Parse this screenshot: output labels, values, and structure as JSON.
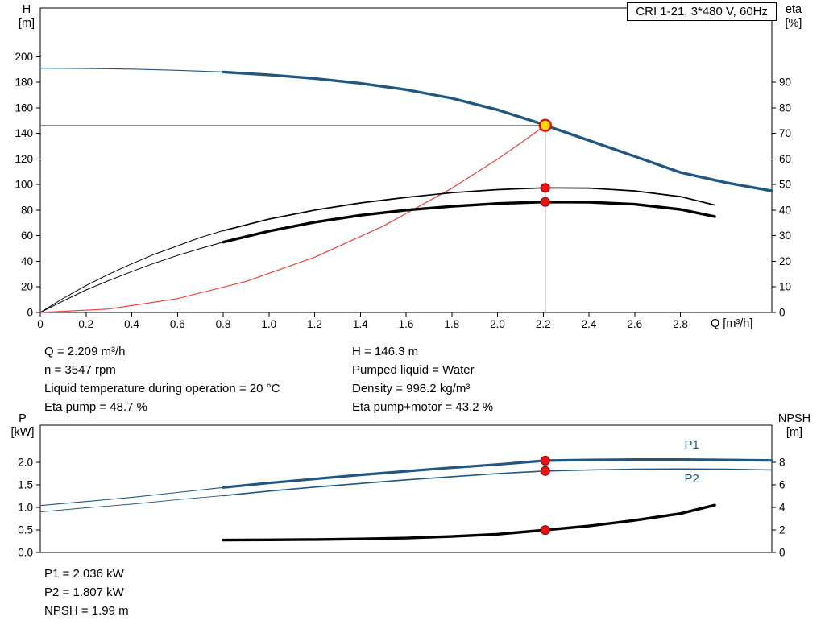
{
  "axis_labels": {
    "h": [
      "H",
      "[m]"
    ],
    "eta": [
      "eta",
      "[%]"
    ],
    "p": [
      "P",
      "[kW]"
    ],
    "npsh": [
      "NPSH",
      "[m]"
    ]
  },
  "annotations": {
    "duty_left": [
      "Q = 2.209 m³/h",
      "n = 3547 rpm",
      "Liquid temperature during operation = 20 °C",
      "Eta pump = 48.7 %"
    ],
    "duty_right": [
      "H = 146.3 m",
      "Pumped liquid = Water",
      "Density = 998.2 kg/m³",
      "Eta pump+motor = 43.2 %"
    ],
    "bottom": [
      "P1 = 2.036 kW",
      "P2 = 1.807 kW",
      "NPSH = 1.99 m"
    ]
  },
  "chart_data": [
    {
      "type": "line",
      "title": "CRI 1-21, 3*480 V, 60Hz",
      "xlabel": "Q [m³/h]",
      "ylabel": "H [m]",
      "ylabel_right": "eta [%]",
      "xlim": [
        0,
        3.2
      ],
      "ylim_left": [
        0,
        238
      ],
      "ylim_right": [
        0,
        119
      ],
      "xticks": [
        "0",
        "0.2",
        "0.4",
        "0.6",
        "0.8",
        "1.0",
        "1.2",
        "1.4",
        "1.6",
        "1.8",
        "2.0",
        "2.2",
        "2.4",
        "2.6",
        "2.8"
      ],
      "yticks_left": [
        "0",
        "20",
        "40",
        "60",
        "80",
        "100",
        "120",
        "140",
        "160",
        "180",
        "200"
      ],
      "yticks_right": [
        "0",
        "10",
        "20",
        "30",
        "40",
        "50",
        "60",
        "70",
        "80",
        "90"
      ],
      "grid": false,
      "duty": {
        "q": 2.209,
        "h": 146.3,
        "line_color": "#787878"
      },
      "series": [
        {
          "name": "pump-curve-lead",
          "axis": "left",
          "color": "#205781",
          "width": 1.2,
          "x": [
            0,
            0.2,
            0.4,
            0.6,
            0.8
          ],
          "y": [
            191,
            190.8,
            190.3,
            189.3,
            188
          ]
        },
        {
          "name": "pump-curve",
          "axis": "left",
          "color": "#205781",
          "width": 3.4,
          "x": [
            0.8,
            1.0,
            1.2,
            1.4,
            1.6,
            1.8,
            2.0,
            2.2,
            2.209,
            2.4,
            2.6,
            2.8,
            3.0,
            3.2
          ],
          "y": [
            188,
            185.8,
            183,
            179.2,
            174.2,
            167.5,
            158.5,
            147,
            146.3,
            134.5,
            122,
            109.5,
            101.5,
            95
          ]
        },
        {
          "name": "system-curve",
          "axis": "left",
          "color": "#e8423b",
          "width": 1.2,
          "x": [
            0,
            0.3,
            0.6,
            0.9,
            1.2,
            1.5,
            1.8,
            2.0,
            2.1,
            2.209
          ],
          "y": [
            0,
            2.7,
            10.8,
            24.3,
            43.2,
            67.5,
            97.1,
            119.9,
            132.2,
            146.3
          ]
        },
        {
          "name": "eta-pump-lead",
          "axis": "right",
          "color": "#000000",
          "width": 1,
          "x": [
            0,
            0.1,
            0.2,
            0.3,
            0.4,
            0.5,
            0.6,
            0.7,
            0.8
          ],
          "y": [
            0,
            5.5,
            10.5,
            15,
            19,
            22.8,
            26,
            29.3,
            32
          ]
        },
        {
          "name": "eta-pump-curve",
          "axis": "right",
          "color": "#000000",
          "width": 1.7,
          "x": [
            0.8,
            1.0,
            1.2,
            1.4,
            1.6,
            1.8,
            2.0,
            2.2,
            2.4,
            2.6,
            2.8,
            2.95
          ],
          "y": [
            32,
            36.5,
            40,
            42.8,
            45,
            46.8,
            48,
            48.7,
            48.6,
            47.5,
            45.3,
            42
          ]
        },
        {
          "name": "eta-pump-motor-lead",
          "axis": "right",
          "color": "#000000",
          "width": 1,
          "x": [
            0,
            0.1,
            0.2,
            0.3,
            0.4,
            0.5,
            0.6,
            0.7,
            0.8
          ],
          "y": [
            0,
            4.5,
            8.8,
            12.5,
            16,
            19.3,
            22.3,
            25,
            27.5
          ]
        },
        {
          "name": "eta-pump-motor-curve",
          "axis": "right",
          "color": "#000000",
          "width": 3.4,
          "x": [
            0.8,
            1.0,
            1.2,
            1.4,
            1.6,
            1.8,
            2.0,
            2.2,
            2.4,
            2.6,
            2.8,
            2.95
          ],
          "y": [
            27.5,
            31.8,
            35.3,
            38,
            40,
            41.5,
            42.6,
            43.2,
            43.1,
            42.3,
            40.3,
            37.5
          ]
        }
      ],
      "labels": [],
      "markers": [
        {
          "name": "eta-pump-point",
          "x": 2.209,
          "y": 48.7,
          "axis": "right",
          "r": 5.5,
          "fill": "#ee1111",
          "stroke": "#8b0000",
          "sw": 1
        },
        {
          "name": "eta-pump-motor-point",
          "x": 2.209,
          "y": 43.2,
          "axis": "right",
          "r": 5.5,
          "fill": "#ee1111",
          "stroke": "#8b0000",
          "sw": 1
        },
        {
          "name": "duty-point",
          "x": 2.209,
          "y": 146.3,
          "axis": "left",
          "r": 7,
          "fill": "#ffd800",
          "stroke": "#dd1111",
          "sw": 2.4
        }
      ]
    },
    {
      "type": "line",
      "title": "",
      "xlabel": "",
      "ylabel": "P [kW]",
      "ylabel_right": "NPSH [m]",
      "xlim": [
        0,
        3.2
      ],
      "ylim_left": [
        0,
        2.82
      ],
      "ylim_right": [
        0,
        11.28
      ],
      "xticks": [],
      "yticks_left": [
        "0.0",
        "0.5",
        "1.0",
        "1.5",
        "2.0"
      ],
      "yticks_right": [
        "0",
        "2",
        "4",
        "6",
        "8"
      ],
      "grid": false,
      "duty": null,
      "series": [
        {
          "name": "p1-curve-lead",
          "axis": "left",
          "color": "#205781",
          "width": 1.1,
          "x": [
            0,
            0.2,
            0.4,
            0.6,
            0.8
          ],
          "y": [
            1.04,
            1.13,
            1.22,
            1.33,
            1.44
          ]
        },
        {
          "name": "p1-curve",
          "axis": "left",
          "color": "#205781",
          "width": 3.2,
          "x": [
            0.8,
            1.0,
            1.2,
            1.4,
            1.6,
            1.8,
            2.0,
            2.209,
            2.4,
            2.6,
            2.8,
            3.0,
            3.2
          ],
          "y": [
            1.44,
            1.54,
            1.63,
            1.72,
            1.8,
            1.88,
            1.95,
            2.036,
            2.05,
            2.06,
            2.06,
            2.05,
            2.04
          ]
        },
        {
          "name": "p2-curve-lead",
          "axis": "left",
          "color": "#205781",
          "width": 0.9,
          "x": [
            0,
            0.2,
            0.4,
            0.6,
            0.8
          ],
          "y": [
            0.9,
            0.99,
            1.07,
            1.17,
            1.26
          ]
        },
        {
          "name": "p2-curve",
          "axis": "left",
          "color": "#205781",
          "width": 1.6,
          "x": [
            0.8,
            1.0,
            1.2,
            1.4,
            1.6,
            1.8,
            2.0,
            2.209,
            2.4,
            2.6,
            2.8,
            3.0,
            3.2
          ],
          "y": [
            1.26,
            1.36,
            1.45,
            1.53,
            1.61,
            1.68,
            1.75,
            1.807,
            1.83,
            1.845,
            1.85,
            1.845,
            1.83
          ]
        },
        {
          "name": "npsh-curve",
          "axis": "right",
          "color": "#000000",
          "width": 3.4,
          "x": [
            0.8,
            1.0,
            1.2,
            1.4,
            1.6,
            1.8,
            2.0,
            2.209,
            2.4,
            2.6,
            2.8,
            2.95
          ],
          "y": [
            1.1,
            1.12,
            1.15,
            1.2,
            1.28,
            1.42,
            1.62,
            1.99,
            2.35,
            2.85,
            3.45,
            4.2
          ]
        }
      ],
      "labels": [
        {
          "name": "p1-label",
          "text": "P1",
          "x": 2.85,
          "y": 2.3,
          "color": "#205781"
        },
        {
          "name": "p2-label",
          "text": "P2",
          "x": 2.85,
          "y": 1.55,
          "color": "#205781"
        }
      ],
      "markers": [
        {
          "name": "p1-point",
          "x": 2.209,
          "y": 2.036,
          "axis": "left",
          "r": 5.5,
          "fill": "#ee1111",
          "stroke": "#8b0000",
          "sw": 1
        },
        {
          "name": "p2-point",
          "x": 2.209,
          "y": 1.807,
          "axis": "left",
          "r": 5.5,
          "fill": "#ee1111",
          "stroke": "#8b0000",
          "sw": 1
        },
        {
          "name": "npsh-point",
          "x": 2.209,
          "y": 1.99,
          "axis": "right",
          "r": 5.5,
          "fill": "#ee1111",
          "stroke": "#8b0000",
          "sw": 1
        }
      ]
    }
  ]
}
